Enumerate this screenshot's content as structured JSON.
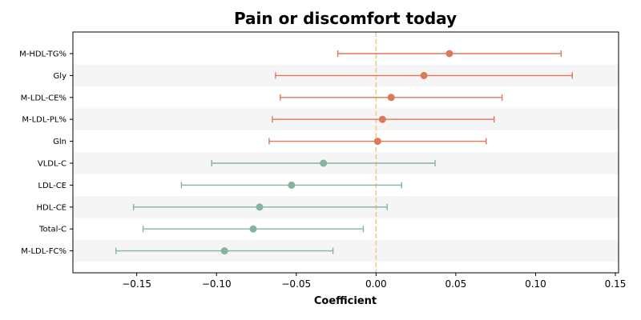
{
  "chart_data": {
    "type": "forest",
    "title": "Pain or discomfort today",
    "xlabel": "Coefficient",
    "xlim": [
      -0.19,
      0.152
    ],
    "xticks": [
      -0.15,
      -0.1,
      -0.05,
      0.0,
      0.05,
      0.1,
      0.15
    ],
    "xtick_labels": [
      "−0.15",
      "−0.10",
      "−0.05",
      "0.00",
      "0.05",
      "0.10",
      "0.15"
    ],
    "reference_line": 0.0,
    "colors": {
      "positive": "#dd785a",
      "negative": "#84b59c",
      "reference": "#f5c88a",
      "band": "#f5f5f5"
    },
    "items": [
      {
        "label": "M-HDL-TG%",
        "coef": 0.046,
        "low": -0.024,
        "high": 0.116
      },
      {
        "label": "Gly",
        "coef": 0.03,
        "low": -0.063,
        "high": 0.123
      },
      {
        "label": "M-LDL-CE%",
        "coef": 0.0095,
        "low": -0.06,
        "high": 0.079
      },
      {
        "label": "M-LDL-PL%",
        "coef": 0.004,
        "low": -0.065,
        "high": 0.074
      },
      {
        "label": "Gln",
        "coef": 0.001,
        "low": -0.067,
        "high": 0.069
      },
      {
        "label": "VLDL-C",
        "coef": -0.033,
        "low": -0.103,
        "high": 0.037
      },
      {
        "label": "LDL-CE",
        "coef": -0.053,
        "low": -0.122,
        "high": 0.016
      },
      {
        "label": "HDL-CE",
        "coef": -0.073,
        "low": -0.152,
        "high": 0.007
      },
      {
        "label": "Total-C",
        "coef": -0.077,
        "low": -0.146,
        "high": -0.008
      },
      {
        "label": "M-LDL-FC%",
        "coef": -0.095,
        "low": -0.163,
        "high": -0.027
      }
    ]
  }
}
